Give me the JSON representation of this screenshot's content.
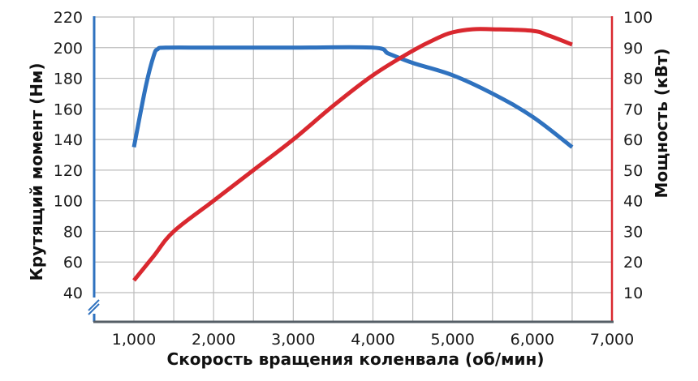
{
  "chart_data": {
    "type": "line",
    "title": "",
    "xlabel": "Скорость вращения коленвала (об/мин)",
    "ylabel_left": "Крутящий момент (Нм)",
    "ylabel_right": "Мощность (кВт)",
    "x_ticks": [
      "1,000",
      "2,000",
      "3,000",
      "4,000",
      "5,000",
      "6,000",
      "7,000"
    ],
    "y_left_ticks": [
      "40",
      "60",
      "80",
      "100",
      "120",
      "140",
      "160",
      "180",
      "200",
      "220"
    ],
    "y_right_ticks": [
      "10",
      "20",
      "30",
      "40",
      "50",
      "60",
      "70",
      "80",
      "90",
      "100"
    ],
    "xlim": [
      500,
      7000
    ],
    "ylim_left": [
      22,
      220
    ],
    "ylim_right": [
      5,
      100
    ],
    "axis_break_left": true,
    "grid": true,
    "legend": "none",
    "series": [
      {
        "name": "Крутящий момент (Нм)",
        "axis": "left",
        "color": "#2f72bf",
        "x": [
          1000,
          1150,
          1250,
          1300,
          1400,
          2000,
          3000,
          4000,
          4200,
          4500,
          5000,
          5500,
          6000,
          6500
        ],
        "values": [
          135,
          175,
          195,
          199,
          200,
          200,
          200,
          200,
          196,
          190,
          182,
          170,
          155,
          135
        ]
      },
      {
        "name": "Мощность (кВт)",
        "axis": "right",
        "color": "#d9282f",
        "x": [
          1000,
          1250,
          1500,
          2000,
          2500,
          3000,
          3500,
          4000,
          4500,
          4800,
          5000,
          5250,
          5500,
          6000,
          6200,
          6500
        ],
        "values": [
          14,
          22,
          30,
          40,
          50,
          60,
          71,
          81,
          89,
          93,
          95,
          96,
          96,
          95.5,
          94,
          91
        ]
      }
    ]
  },
  "colors": {
    "left_axis": "#2f72bf",
    "right_axis": "#d9282f",
    "bottom_axis": "#555e66",
    "grid": "#bcbcbc"
  }
}
